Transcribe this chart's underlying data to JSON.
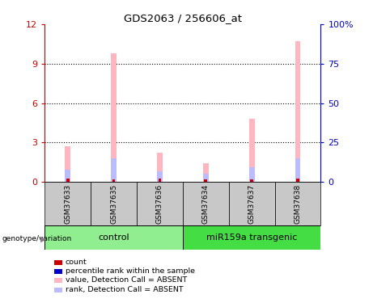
{
  "title": "GDS2063 / 256606_at",
  "samples": [
    "GSM37633",
    "GSM37635",
    "GSM37636",
    "GSM37634",
    "GSM37637",
    "GSM37638"
  ],
  "pink_values": [
    2.7,
    9.8,
    2.2,
    1.4,
    4.8,
    10.7
  ],
  "blue_values": [
    0.9,
    1.8,
    0.8,
    0.6,
    1.1,
    1.8
  ],
  "red_small_values": [
    0.25,
    0.18,
    0.22,
    0.18,
    0.2,
    0.22
  ],
  "ylim_left": [
    0,
    12
  ],
  "ylim_right": [
    0,
    100
  ],
  "yticks_left": [
    0,
    3,
    6,
    9,
    12
  ],
  "yticks_right": [
    0,
    25,
    50,
    75,
    100
  ],
  "ytick_labels_right": [
    "0",
    "25",
    "50",
    "75",
    "100%"
  ],
  "left_axis_color": "#CC0000",
  "right_axis_color": "#0000CC",
  "pink_color": "#FFB6C1",
  "blue_bar_color": "#BBBBFF",
  "red_dot_color": "#CC0000",
  "grid_color": "#000000",
  "bar_width": 0.12,
  "sample_bg_color": "#C8C8C8",
  "ctrl_color": "#90EE90",
  "mir_color": "#44DD44",
  "genotype_label": "genotype/variation"
}
